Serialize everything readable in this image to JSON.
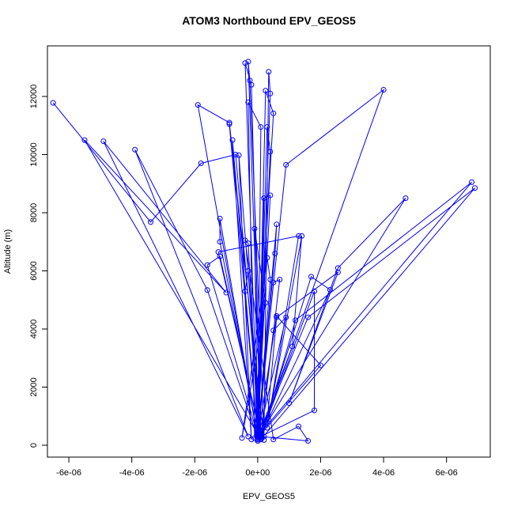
{
  "chart_data": {
    "type": "line",
    "title": "ATOM3 Northbound EPV_GEOS5",
    "x_label": "EPV_GEOS5",
    "y_label": "Altitude (m)",
    "color": "#0000ff",
    "grid": false,
    "xlim": [
      -6.68e-06,
      7.39e-06
    ],
    "ylim": [
      -408,
      13741
    ],
    "xticks": [
      {
        "value": -6e-06,
        "label": "-6e-06"
      },
      {
        "value": -4e-06,
        "label": "-4e-06"
      },
      {
        "value": -2e-06,
        "label": "-2e-06"
      },
      {
        "value": 0,
        "label": "0e+00"
      },
      {
        "value": 2e-06,
        "label": "2e-06"
      },
      {
        "value": 4e-06,
        "label": "4e-06"
      },
      {
        "value": 6e-06,
        "label": "6e-06"
      }
    ],
    "yticks": [
      0,
      2000,
      4000,
      6000,
      8000,
      10000,
      12000
    ],
    "x": [
      -6.5e-06,
      -3.4e-06,
      -1.8e-06,
      -7e-07,
      1e-07,
      -5.5e-06,
      -1e-06,
      -4.9e-06,
      -3e-07,
      -3.9e-06,
      -1.6e-06,
      0.0,
      -1.9e-06,
      -9e-07,
      2e-07,
      -9e-07,
      0.0,
      -8e-07,
      -2e-07,
      -6e-07,
      1e-07,
      4e-06,
      9e-07,
      0.0,
      -4e-07,
      -2e-07,
      1e-07,
      -3e-07,
      -2.5e-07,
      2e-07,
      3.5e-07,
      4e-07,
      0.0,
      2.5e-07,
      5e-07,
      -1e-07,
      -3e-07,
      1e-07,
      0.0,
      3e-07,
      4e-07,
      0.0,
      6.8e-06,
      1.2e-06,
      1e-07,
      6.9e-06,
      1.6e-06,
      0.0,
      4.7e-06,
      2.55e-06,
      1e-06,
      2.55e-06,
      6e-07,
      3e-07,
      2.3e-06,
      1.7e-06,
      1e-07,
      1.8e-06,
      1.8e-06,
      0.0,
      -1.2e-06,
      -1.2e-06,
      0.0,
      -1.6e-06,
      -1.2e-06,
      1e-07,
      -1.25e-06,
      1.3e-06,
      3e-07,
      1.4e-06,
      1.1e-06,
      0.0,
      2e-06,
      6e-07,
      0.0,
      9e-07,
      5e-07,
      1e-07,
      1.6e-06,
      1.3e-06,
      5e-07,
      -4e-07,
      -3e-07,
      0.0,
      -4e-07,
      -3e-07,
      1e-07,
      7e-07,
      5e-07,
      0.0,
      6e-07,
      5.5e-07,
      0.0,
      4e-07,
      2e-07,
      0.0,
      -1e-07,
      2.5e-07,
      -5e-07,
      3e-07,
      4e-07,
      0.0
    ],
    "values": [
      11780,
      7680,
      9700,
      10000,
      200,
      10500,
      5250,
      10460,
      300,
      10170,
      5340,
      250,
      11710,
      11100,
      180,
      11050,
      300,
      10500,
      200,
      9980,
      350,
      12230,
      9650,
      400,
      13150,
      12400,
      250,
      13200,
      12550,
      300,
      12850,
      12100,
      200,
      12200,
      11420,
      250,
      11800,
      10950,
      150,
      10950,
      10100,
      300,
      9050,
      4300,
      200,
      8850,
      4400,
      250,
      8500,
      6100,
      1450,
      5950,
      4400,
      800,
      5350,
      5800,
      300,
      5300,
      1200,
      250,
      7800,
      7000,
      350,
      6200,
      6500,
      250,
      6650,
      7200,
      600,
      7200,
      3400,
      250,
      2750,
      4450,
      200,
      4400,
      3950,
      300,
      150,
      650,
      200,
      7050,
      6950,
      300,
      5300,
      6000,
      250,
      5700,
      5600,
      200,
      7600,
      6600,
      400,
      8600,
      8500,
      300,
      7450,
      4900,
      250,
      6450,
      5700,
      150
    ]
  }
}
